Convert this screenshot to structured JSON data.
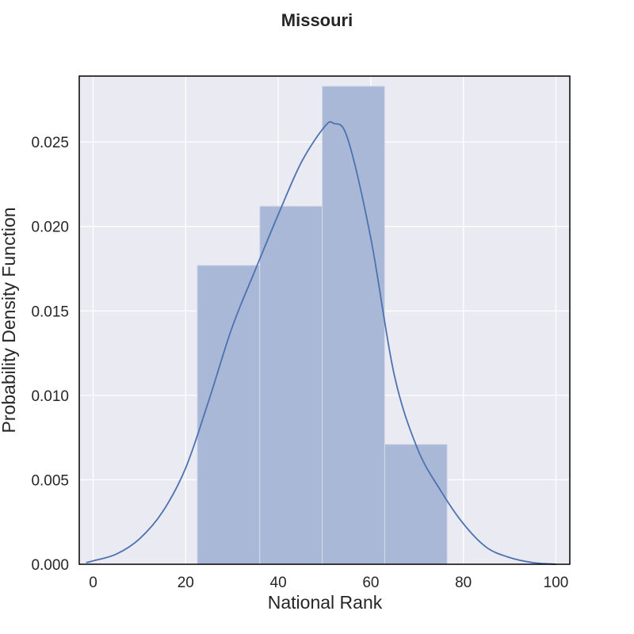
{
  "chart_data": {
    "type": "bar",
    "title": "Missouri",
    "xlabel": "National Rank",
    "ylabel": "Probability Density Function",
    "xlim": [
      -3,
      103
    ],
    "ylim": [
      0,
      0.0289
    ],
    "xticks": [
      0,
      20,
      40,
      60,
      80,
      100
    ],
    "xtick_labels": [
      "0",
      "20",
      "40",
      "60",
      "80",
      "100"
    ],
    "yticks": [
      0,
      0.005,
      0.01,
      0.015,
      0.02,
      0.025
    ],
    "ytick_labels": [
      "0.000",
      "0.005",
      "0.010",
      "0.015",
      "0.020",
      "0.025"
    ],
    "grid": true,
    "histogram": {
      "bin_edges": [
        22.5,
        36,
        49.5,
        63,
        76.5
      ],
      "densities": [
        0.0177,
        0.0212,
        0.0283,
        0.0071
      ]
    },
    "kde": {
      "x": [
        -1.5,
        0,
        5,
        10,
        15,
        20,
        25,
        30,
        35,
        40,
        45,
        50,
        52,
        55,
        60,
        65,
        70,
        75,
        80,
        85,
        90,
        95,
        100
      ],
      "y": [
        0.0001,
        0.0002,
        0.0006,
        0.0015,
        0.0031,
        0.0057,
        0.0097,
        0.014,
        0.0174,
        0.0207,
        0.0238,
        0.0259,
        0.0261,
        0.0252,
        0.0193,
        0.0113,
        0.0069,
        0.0044,
        0.0024,
        0.001,
        0.0004,
        0.0001,
        0.0
      ]
    },
    "colors": {
      "background": "#eaeaf2",
      "grid": "#ffffff",
      "bar": "#a9b8d7",
      "bar_edge": "#d4dae9",
      "kde_line": "#4c72b0",
      "frame": "#000000"
    }
  }
}
